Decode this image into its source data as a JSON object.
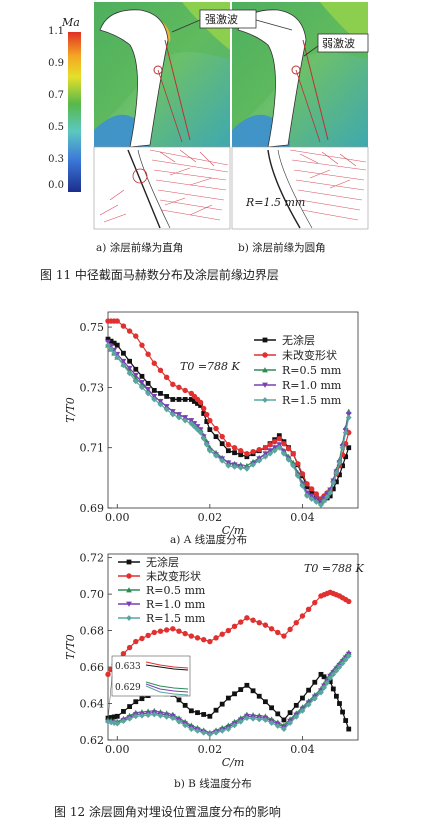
{
  "fig11": {
    "colorbar": {
      "title": "Ma",
      "ticks": [
        "1.1",
        "0.9",
        "0.7",
        "0.5",
        "0.3",
        "0.0"
      ]
    },
    "label_strong": "强激波",
    "label_weak": "弱激波",
    "r_label": "R=1.5 mm",
    "sub_a": "a)  涂层前缘为直角",
    "sub_b": "b)  涂层前缘为圆角",
    "caption": "图 11   中径截面马赫数分布及涂层前缘边界层"
  },
  "fig12": {
    "sub_a": "a)  A 线温度分布",
    "sub_b": "b)  B 线温度分布",
    "caption": "图 12   涂层圆角对埋设位置温度分布的影响"
  },
  "chart_data": [
    {
      "type": "line",
      "xlabel": "C/m",
      "ylabel": "T/T0",
      "annotation": "T0 =788 K",
      "xlim": [
        -0.002,
        0.052
      ],
      "ylim": [
        0.69,
        0.755
      ],
      "xticks": [
        "0.00",
        "0.02",
        "0.04"
      ],
      "yticks": [
        "0.69",
        "0.71",
        "0.73",
        "0.75"
      ],
      "legend_position": "top-right",
      "series": [
        {
          "name": "无涂层",
          "color": "#111111",
          "x": [
            -0.002,
            0.0,
            0.004,
            0.008,
            0.012,
            0.016,
            0.018,
            0.02,
            0.024,
            0.028,
            0.032,
            0.035,
            0.038,
            0.041,
            0.044,
            0.046,
            0.048,
            0.05
          ],
          "y": [
            0.746,
            0.744,
            0.736,
            0.729,
            0.726,
            0.726,
            0.724,
            0.716,
            0.709,
            0.707,
            0.71,
            0.714,
            0.708,
            0.697,
            0.692,
            0.694,
            0.701,
            0.71
          ]
        },
        {
          "name": "未改变形状",
          "color": "#e03030",
          "x": [
            -0.002,
            0.0,
            0.004,
            0.008,
            0.012,
            0.016,
            0.018,
            0.02,
            0.024,
            0.028,
            0.032,
            0.035,
            0.038,
            0.041,
            0.044,
            0.046,
            0.048,
            0.05
          ],
          "y": [
            0.752,
            0.752,
            0.747,
            0.738,
            0.731,
            0.728,
            0.725,
            0.719,
            0.711,
            0.708,
            0.71,
            0.713,
            0.708,
            0.698,
            0.693,
            0.696,
            0.704,
            0.715
          ]
        },
        {
          "name": "R=0.5 mm",
          "color": "#2e8b57",
          "x": [
            -0.002,
            0.0,
            0.004,
            0.008,
            0.012,
            0.016,
            0.018,
            0.02,
            0.024,
            0.028,
            0.032,
            0.035,
            0.038,
            0.041,
            0.044,
            0.046,
            0.048,
            0.05
          ],
          "y": [
            0.744,
            0.74,
            0.733,
            0.727,
            0.722,
            0.719,
            0.716,
            0.71,
            0.705,
            0.704,
            0.708,
            0.711,
            0.705,
            0.695,
            0.692,
            0.696,
            0.706,
            0.722
          ]
        },
        {
          "name": "R=1.0 mm",
          "color": "#7a3fb5",
          "x": [
            -0.002,
            0.0,
            0.004,
            0.008,
            0.012,
            0.016,
            0.018,
            0.02,
            0.024,
            0.028,
            0.032,
            0.035,
            0.038,
            0.041,
            0.044,
            0.046,
            0.048,
            0.05
          ],
          "y": [
            0.745,
            0.741,
            0.734,
            0.727,
            0.722,
            0.719,
            0.716,
            0.709,
            0.705,
            0.703,
            0.708,
            0.711,
            0.704,
            0.695,
            0.692,
            0.696,
            0.705,
            0.721
          ]
        },
        {
          "name": "R=1.5 mm",
          "color": "#5aa5a0",
          "x": [
            -0.002,
            0.0,
            0.004,
            0.008,
            0.012,
            0.016,
            0.018,
            0.02,
            0.024,
            0.028,
            0.032,
            0.035,
            0.038,
            0.041,
            0.044,
            0.046,
            0.048,
            0.05
          ],
          "y": [
            0.744,
            0.74,
            0.732,
            0.726,
            0.721,
            0.718,
            0.715,
            0.709,
            0.704,
            0.703,
            0.707,
            0.71,
            0.704,
            0.694,
            0.691,
            0.695,
            0.705,
            0.72
          ]
        }
      ]
    },
    {
      "type": "line",
      "xlabel": "C/m",
      "ylabel": "T/T0",
      "annotation": "T0 =788 K",
      "xlim": [
        -0.002,
        0.052
      ],
      "ylim": [
        0.62,
        0.722
      ],
      "xticks": [
        "0.00",
        "0.02",
        "0.04"
      ],
      "yticks": [
        "0.62",
        "0.64",
        "0.66",
        "0.68",
        "0.70",
        "0.72"
      ],
      "legend_position": "top-left",
      "inset_ticks": [
        "0.633",
        "0.629"
      ],
      "series": [
        {
          "name": "无涂层",
          "color": "#111111",
          "x": [
            -0.002,
            0.0,
            0.004,
            0.008,
            0.012,
            0.016,
            0.02,
            0.024,
            0.028,
            0.032,
            0.036,
            0.04,
            0.044,
            0.046,
            0.048,
            0.05
          ],
          "y": [
            0.632,
            0.633,
            0.641,
            0.646,
            0.645,
            0.636,
            0.633,
            0.643,
            0.65,
            0.641,
            0.631,
            0.643,
            0.656,
            0.652,
            0.64,
            0.626
          ]
        },
        {
          "name": "未改变形状",
          "color": "#e03030",
          "x": [
            -0.002,
            0.0,
            0.004,
            0.008,
            0.012,
            0.016,
            0.02,
            0.024,
            0.028,
            0.032,
            0.036,
            0.04,
            0.044,
            0.046,
            0.048,
            0.05
          ],
          "y": [
            0.656,
            0.664,
            0.674,
            0.679,
            0.681,
            0.677,
            0.674,
            0.68,
            0.687,
            0.683,
            0.677,
            0.688,
            0.699,
            0.701,
            0.699,
            0.696
          ]
        },
        {
          "name": "R=0.5 mm",
          "color": "#2e8b57",
          "x": [
            -0.002,
            0.0,
            0.004,
            0.008,
            0.012,
            0.016,
            0.02,
            0.024,
            0.028,
            0.032,
            0.036,
            0.04,
            0.044,
            0.046,
            0.048,
            0.05
          ],
          "y": [
            0.631,
            0.63,
            0.635,
            0.636,
            0.634,
            0.628,
            0.624,
            0.628,
            0.634,
            0.633,
            0.628,
            0.638,
            0.648,
            0.656,
            0.662,
            0.668
          ]
        },
        {
          "name": "R=1.0 mm",
          "color": "#7a3fb5",
          "x": [
            -0.002,
            0.0,
            0.004,
            0.008,
            0.012,
            0.016,
            0.02,
            0.024,
            0.028,
            0.032,
            0.036,
            0.04,
            0.044,
            0.046,
            0.048,
            0.05
          ],
          "y": [
            0.63,
            0.629,
            0.634,
            0.635,
            0.633,
            0.627,
            0.623,
            0.627,
            0.633,
            0.632,
            0.627,
            0.637,
            0.647,
            0.655,
            0.661,
            0.667
          ]
        },
        {
          "name": "R=1.5 mm",
          "color": "#5aa5a0",
          "x": [
            -0.002,
            0.0,
            0.004,
            0.008,
            0.012,
            0.016,
            0.02,
            0.024,
            0.028,
            0.032,
            0.036,
            0.04,
            0.044,
            0.046,
            0.048,
            0.05
          ],
          "y": [
            0.63,
            0.629,
            0.633,
            0.634,
            0.632,
            0.626,
            0.623,
            0.626,
            0.632,
            0.631,
            0.626,
            0.636,
            0.646,
            0.654,
            0.66,
            0.666
          ]
        }
      ]
    }
  ]
}
